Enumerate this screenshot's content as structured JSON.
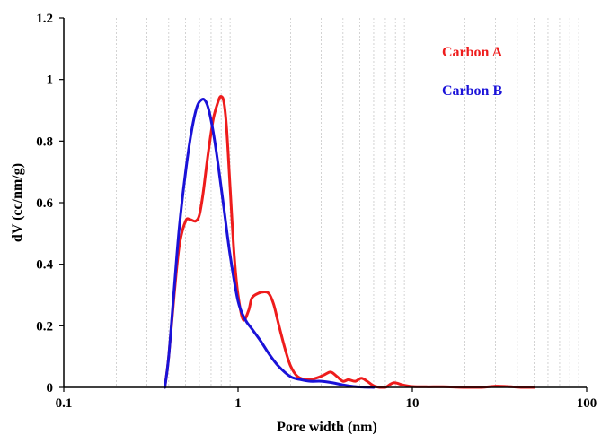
{
  "chart_data": {
    "type": "line",
    "title": "",
    "xlabel": "Pore width (nm)",
    "ylabel": "dV (cc/nm/g)",
    "xscale": "log",
    "xlim": [
      0.1,
      100
    ],
    "ylim": [
      0,
      1.2
    ],
    "x_tick_labels": [
      "0.1",
      "1",
      "10",
      "100"
    ],
    "y_tick_labels": [
      "0",
      "0.2",
      "0.4",
      "0.6",
      "0.8",
      "1",
      "1.2"
    ],
    "grid": "vertical minor dashed lines",
    "legend_placement": "top-right",
    "series": [
      {
        "name": "Carbon A",
        "color": "#ee1c1c",
        "x": [
          0.38,
          0.4,
          0.43,
          0.46,
          0.5,
          0.53,
          0.57,
          0.6,
          0.63,
          0.67,
          0.72,
          0.77,
          0.8,
          0.83,
          0.86,
          0.9,
          0.95,
          1.0,
          1.07,
          1.15,
          1.2,
          1.3,
          1.4,
          1.5,
          1.6,
          1.7,
          1.85,
          2.0,
          2.2,
          2.5,
          2.8,
          3.1,
          3.4,
          3.7,
          4.0,
          4.3,
          4.7,
          5.1,
          5.5,
          6.0,
          6.5,
          7.0,
          7.8,
          8.8,
          10.0,
          12.0,
          15.0,
          20.0,
          25.0,
          30.0,
          35.0,
          42.0,
          50.0
        ],
        "values": [
          0.0,
          0.1,
          0.3,
          0.46,
          0.54,
          0.545,
          0.54,
          0.56,
          0.63,
          0.75,
          0.87,
          0.93,
          0.945,
          0.925,
          0.84,
          0.65,
          0.43,
          0.3,
          0.22,
          0.25,
          0.29,
          0.305,
          0.31,
          0.305,
          0.27,
          0.21,
          0.13,
          0.07,
          0.035,
          0.025,
          0.03,
          0.04,
          0.05,
          0.035,
          0.02,
          0.025,
          0.02,
          0.03,
          0.02,
          0.005,
          0.0,
          0.0,
          0.015,
          0.008,
          0.003,
          0.002,
          0.002,
          0.0,
          0.0,
          0.004,
          0.003,
          0.0,
          0.0
        ]
      },
      {
        "name": "Carbon B",
        "color": "#1a12d8",
        "x": [
          0.38,
          0.4,
          0.43,
          0.46,
          0.5,
          0.54,
          0.58,
          0.62,
          0.65,
          0.68,
          0.72,
          0.77,
          0.83,
          0.9,
          1.0,
          1.1,
          1.2,
          1.35,
          1.5,
          1.7,
          2.0,
          2.3,
          2.6,
          3.0,
          3.5,
          4.0,
          4.6,
          5.2,
          6.0
        ],
        "values": [
          0.0,
          0.1,
          0.32,
          0.52,
          0.7,
          0.83,
          0.91,
          0.935,
          0.93,
          0.9,
          0.83,
          0.72,
          0.58,
          0.43,
          0.28,
          0.22,
          0.19,
          0.15,
          0.11,
          0.07,
          0.035,
          0.025,
          0.02,
          0.02,
          0.015,
          0.008,
          0.003,
          0.001,
          0.0
        ]
      }
    ]
  }
}
